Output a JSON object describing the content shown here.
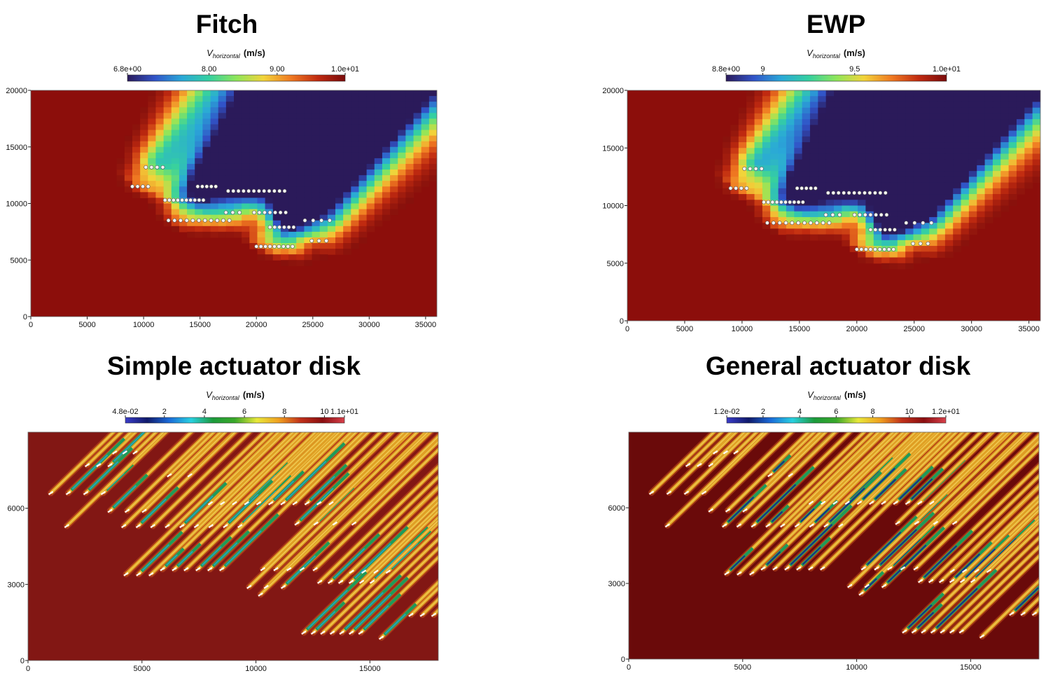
{
  "chart_data": [
    {
      "type": "heatmap",
      "title": "Fitch",
      "colorbar": {
        "label_main": "V",
        "label_sub": "horizontal",
        "label_unit": "(m/s)",
        "min": 6.8,
        "max": 10.0,
        "ticks": [
          {
            "value": 6.8,
            "label": "6.8e+00"
          },
          {
            "value": 8.0,
            "label": "8.00"
          },
          {
            "value": 9.0,
            "label": "9.00"
          },
          {
            "value": 10.0,
            "label": "1.0e+01"
          }
        ],
        "colors": [
          "#2b1a5a",
          "#3153c8",
          "#2aa8d8",
          "#35d0a0",
          "#8ee65a",
          "#f2d43a",
          "#f07a22",
          "#c02a10",
          "#7a0b0b"
        ]
      },
      "xlim": [
        0,
        36000
      ],
      "ylim": [
        0,
        20000
      ],
      "xticks": [
        0,
        5000,
        10000,
        15000,
        20000,
        25000,
        30000,
        35000
      ],
      "yticks": [
        0,
        5000,
        10000,
        15000,
        20000
      ],
      "background_color": "#8c0e0b",
      "turbine_rows": [
        {
          "y": 13200,
          "x_start": 10200,
          "x_end": 11700,
          "n": 4
        },
        {
          "y": 11500,
          "x_start": 9000,
          "x_end": 10400,
          "n": 4
        },
        {
          "y": 11500,
          "x_start": 14800,
          "x_end": 16400,
          "n": 5
        },
        {
          "y": 11100,
          "x_start": 17500,
          "x_end": 22500,
          "n": 12
        },
        {
          "y": 10300,
          "x_start": 11900,
          "x_end": 15300,
          "n": 10
        },
        {
          "y": 9200,
          "x_start": 17300,
          "x_end": 18500,
          "n": 3
        },
        {
          "y": 9200,
          "x_start": 19800,
          "x_end": 22600,
          "n": 7
        },
        {
          "y": 8500,
          "x_start": 12200,
          "x_end": 17600,
          "n": 11
        },
        {
          "y": 8500,
          "x_start": 24300,
          "x_end": 26500,
          "n": 4
        },
        {
          "y": 7900,
          "x_start": 21200,
          "x_end": 23300,
          "n": 6
        },
        {
          "y": 6700,
          "x_start": 24900,
          "x_end": 26200,
          "n": 3
        },
        {
          "y": 6200,
          "x_start": 20000,
          "x_end": 23200,
          "n": 9
        }
      ]
    },
    {
      "type": "heatmap",
      "title": "EWP",
      "colorbar": {
        "label_main": "V",
        "label_sub": "horizontal",
        "label_unit": "(m/s)",
        "min": 8.8,
        "max": 10.0,
        "ticks": [
          {
            "value": 8.8,
            "label": "8.8e+00"
          },
          {
            "value": 9.0,
            "label": "9"
          },
          {
            "value": 9.5,
            "label": "9.5"
          },
          {
            "value": 10.0,
            "label": "1.0e+01"
          }
        ],
        "colors": [
          "#2b1a5a",
          "#3153c8",
          "#2aa8d8",
          "#35d0a0",
          "#8ee65a",
          "#f2d43a",
          "#f07a22",
          "#c02a10",
          "#7a0b0b"
        ]
      },
      "xlim": [
        0,
        36000
      ],
      "ylim": [
        0,
        20000
      ],
      "xticks": [
        0,
        5000,
        10000,
        15000,
        20000,
        25000,
        30000,
        35000
      ],
      "yticks": [
        0,
        5000,
        10000,
        15000,
        20000
      ],
      "background_color": "#8c0e0b",
      "turbine_rows": [
        {
          "y": 13200,
          "x_start": 10200,
          "x_end": 11700,
          "n": 4
        },
        {
          "y": 11500,
          "x_start": 9000,
          "x_end": 10400,
          "n": 4
        },
        {
          "y": 11500,
          "x_start": 14800,
          "x_end": 16400,
          "n": 5
        },
        {
          "y": 11100,
          "x_start": 17500,
          "x_end": 22500,
          "n": 12
        },
        {
          "y": 10300,
          "x_start": 11900,
          "x_end": 15300,
          "n": 10
        },
        {
          "y": 9200,
          "x_start": 17300,
          "x_end": 18500,
          "n": 3
        },
        {
          "y": 9200,
          "x_start": 19800,
          "x_end": 22600,
          "n": 7
        },
        {
          "y": 8500,
          "x_start": 12200,
          "x_end": 17600,
          "n": 11
        },
        {
          "y": 8500,
          "x_start": 24300,
          "x_end": 26500,
          "n": 4
        },
        {
          "y": 7900,
          "x_start": 21200,
          "x_end": 23300,
          "n": 6
        },
        {
          "y": 6700,
          "x_start": 24900,
          "x_end": 26200,
          "n": 3
        },
        {
          "y": 6200,
          "x_start": 20000,
          "x_end": 23200,
          "n": 9
        }
      ]
    },
    {
      "type": "heatmap",
      "title": "Simple actuator disk",
      "colorbar": {
        "label_main": "V",
        "label_sub": "horizontal",
        "label_unit": "(m/s)",
        "min": 0.048,
        "max": 11.0,
        "ticks": [
          {
            "value": 0.048,
            "label": "4.8e-02"
          },
          {
            "value": 2,
            "label": "2"
          },
          {
            "value": 4,
            "label": "4"
          },
          {
            "value": 6,
            "label": "6"
          },
          {
            "value": 8,
            "label": "8"
          },
          {
            "value": 10,
            "label": "10"
          },
          {
            "value": 11,
            "label": "1.1e+01"
          }
        ],
        "colors": [
          "#3a3cc8",
          "#101a6a",
          "#1a6ad8",
          "#28d0e0",
          "#1c9a3a",
          "#3aa82a",
          "#e8e83a",
          "#f0a020",
          "#c0301a",
          "#8a0e10",
          "#d8404a"
        ]
      },
      "xlim": [
        0,
        18000
      ],
      "ylim": [
        0,
        9000
      ],
      "xticks": [
        0,
        5000,
        10000,
        15000
      ],
      "yticks": [
        0,
        3000,
        6000
      ],
      "background_color": "#821714",
      "turbine_rows": [
        {
          "y": 8200,
          "x_start": 3800,
          "x_end": 4700,
          "n": 3
        },
        {
          "y": 7700,
          "x_start": 2600,
          "x_end": 3600,
          "n": 3
        },
        {
          "y": 7300,
          "x_start": 6200,
          "x_end": 7100,
          "n": 2
        },
        {
          "y": 6600,
          "x_start": 1000,
          "x_end": 3300,
          "n": 4
        },
        {
          "y": 6200,
          "x_start": 8000,
          "x_end": 13300,
          "n": 11
        },
        {
          "y": 5900,
          "x_start": 3600,
          "x_end": 5100,
          "n": 3
        },
        {
          "y": 5300,
          "x_start": 1700,
          "x_end": 1700,
          "n": 1
        },
        {
          "y": 5300,
          "x_start": 4200,
          "x_end": 9300,
          "n": 9
        },
        {
          "y": 5400,
          "x_start": 11800,
          "x_end": 14300,
          "n": 4
        },
        {
          "y": 3600,
          "x_start": 5900,
          "x_end": 8500,
          "n": 6
        },
        {
          "y": 3600,
          "x_start": 10300,
          "x_end": 12600,
          "n": 5
        },
        {
          "y": 3500,
          "x_start": 14200,
          "x_end": 15800,
          "n": 4
        },
        {
          "y": 3400,
          "x_start": 4300,
          "x_end": 5400,
          "n": 3
        },
        {
          "y": 3100,
          "x_start": 12800,
          "x_end": 15100,
          "n": 6
        },
        {
          "y": 2900,
          "x_start": 9700,
          "x_end": 11200,
          "n": 3
        },
        {
          "y": 2600,
          "x_start": 10200,
          "x_end": 10200,
          "n": 1
        },
        {
          "y": 1800,
          "x_start": 16800,
          "x_end": 17800,
          "n": 3
        },
        {
          "y": 1100,
          "x_start": 12100,
          "x_end": 14600,
          "n": 7
        },
        {
          "y": 900,
          "x_start": 15500,
          "x_end": 15500,
          "n": 1
        }
      ]
    },
    {
      "type": "heatmap",
      "title": "General actuator disk",
      "colorbar": {
        "label_main": "V",
        "label_sub": "horizontal",
        "label_unit": "(m/s)",
        "min": 0.012,
        "max": 12.0,
        "ticks": [
          {
            "value": 0.012,
            "label": "1.2e-02"
          },
          {
            "value": 2,
            "label": "2"
          },
          {
            "value": 4,
            "label": "4"
          },
          {
            "value": 6,
            "label": "6"
          },
          {
            "value": 8,
            "label": "8"
          },
          {
            "value": 10,
            "label": "10"
          },
          {
            "value": 12,
            "label": "1.2e+01"
          }
        ],
        "colors": [
          "#3a3cc8",
          "#101a6a",
          "#1a6ad8",
          "#28d0e0",
          "#1c9a3a",
          "#3aa82a",
          "#e8e83a",
          "#f0a020",
          "#c0301a",
          "#8a0e10",
          "#d8404a"
        ]
      },
      "xlim": [
        0,
        18000
      ],
      "ylim": [
        0,
        9000
      ],
      "xticks": [
        0,
        5000,
        10000,
        15000
      ],
      "yticks": [
        0,
        3000,
        6000
      ],
      "background_color": "#6a0a0a",
      "turbine_rows": [
        {
          "y": 8200,
          "x_start": 3800,
          "x_end": 4700,
          "n": 3
        },
        {
          "y": 7700,
          "x_start": 2600,
          "x_end": 3600,
          "n": 3
        },
        {
          "y": 7300,
          "x_start": 6200,
          "x_end": 7100,
          "n": 2
        },
        {
          "y": 6600,
          "x_start": 1000,
          "x_end": 3300,
          "n": 4
        },
        {
          "y": 6200,
          "x_start": 8000,
          "x_end": 13300,
          "n": 11
        },
        {
          "y": 5900,
          "x_start": 3600,
          "x_end": 5100,
          "n": 3
        },
        {
          "y": 5300,
          "x_start": 1700,
          "x_end": 1700,
          "n": 1
        },
        {
          "y": 5300,
          "x_start": 4200,
          "x_end": 9300,
          "n": 9
        },
        {
          "y": 5400,
          "x_start": 11800,
          "x_end": 14300,
          "n": 4
        },
        {
          "y": 3600,
          "x_start": 5900,
          "x_end": 8500,
          "n": 6
        },
        {
          "y": 3600,
          "x_start": 10300,
          "x_end": 12600,
          "n": 5
        },
        {
          "y": 3500,
          "x_start": 14200,
          "x_end": 15800,
          "n": 4
        },
        {
          "y": 3400,
          "x_start": 4300,
          "x_end": 5400,
          "n": 3
        },
        {
          "y": 3100,
          "x_start": 12800,
          "x_end": 15100,
          "n": 6
        },
        {
          "y": 2900,
          "x_start": 9700,
          "x_end": 11200,
          "n": 3
        },
        {
          "y": 2600,
          "x_start": 10200,
          "x_end": 10200,
          "n": 1
        },
        {
          "y": 1800,
          "x_start": 16800,
          "x_end": 17800,
          "n": 3
        },
        {
          "y": 1100,
          "x_start": 12100,
          "x_end": 14600,
          "n": 7
        },
        {
          "y": 900,
          "x_start": 15500,
          "x_end": 15500,
          "n": 1
        }
      ]
    }
  ]
}
